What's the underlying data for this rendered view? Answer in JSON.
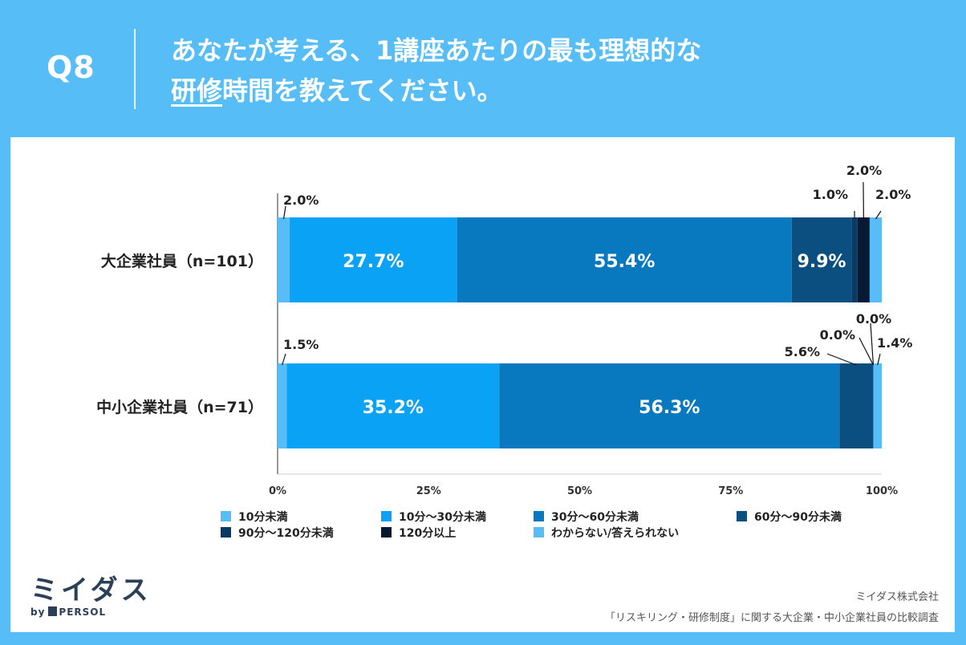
{
  "header": {
    "q_number": "Q8",
    "title_line1": "あなたが考える、1講座あたりの最も理想的な",
    "title_line2_underlined": "研修",
    "title_line2_rest": "時間を教えてください。"
  },
  "chart_data": {
    "type": "bar",
    "orientation": "horizontal-stacked",
    "xlim": [
      0,
      100
    ],
    "x_ticks": [
      "0%",
      "25%",
      "50%",
      "75%",
      "100%"
    ],
    "categories": [
      "大企業社員（n=101）",
      "中小企業社員（n=71）"
    ],
    "series": [
      {
        "name": "10分未満",
        "color": "#56bdf7",
        "values": [
          2.0,
          1.5
        ]
      },
      {
        "name": "10分～30分未満",
        "color": "#0aa2f5",
        "values": [
          27.7,
          35.2
        ]
      },
      {
        "name": "30分～60分未満",
        "color": "#0879bf",
        "values": [
          55.4,
          56.3
        ]
      },
      {
        "name": "60分～90分未満",
        "color": "#0b4f80",
        "values": [
          9.9,
          5.6
        ]
      },
      {
        "name": "90分～120分未満",
        "color": "#0a3a63",
        "values": [
          1.0,
          0.0
        ]
      },
      {
        "name": "120分以上",
        "color": "#061a33",
        "values": [
          2.0,
          0.0
        ]
      },
      {
        "name": "わからない/答えられない",
        "color": "#56bdf7",
        "values": [
          2.0,
          1.4
        ]
      }
    ],
    "value_labels": [
      [
        "2.0%",
        "27.7%",
        "55.4%",
        "9.9%",
        "1.0%",
        "2.0%",
        "2.0%"
      ],
      [
        "1.5%",
        "35.2%",
        "56.3%",
        "5.6%",
        "0.0%",
        "0.0%",
        "1.4%"
      ]
    ]
  },
  "footer": {
    "brand": "ミイダス",
    "brand_by": "by",
    "brand_company": "PERSOL",
    "credit_company": "ミイダス株式会社",
    "credit_survey": "「リスキリング・研修制度」に関する大企業・中小企業社員の比較調査"
  }
}
